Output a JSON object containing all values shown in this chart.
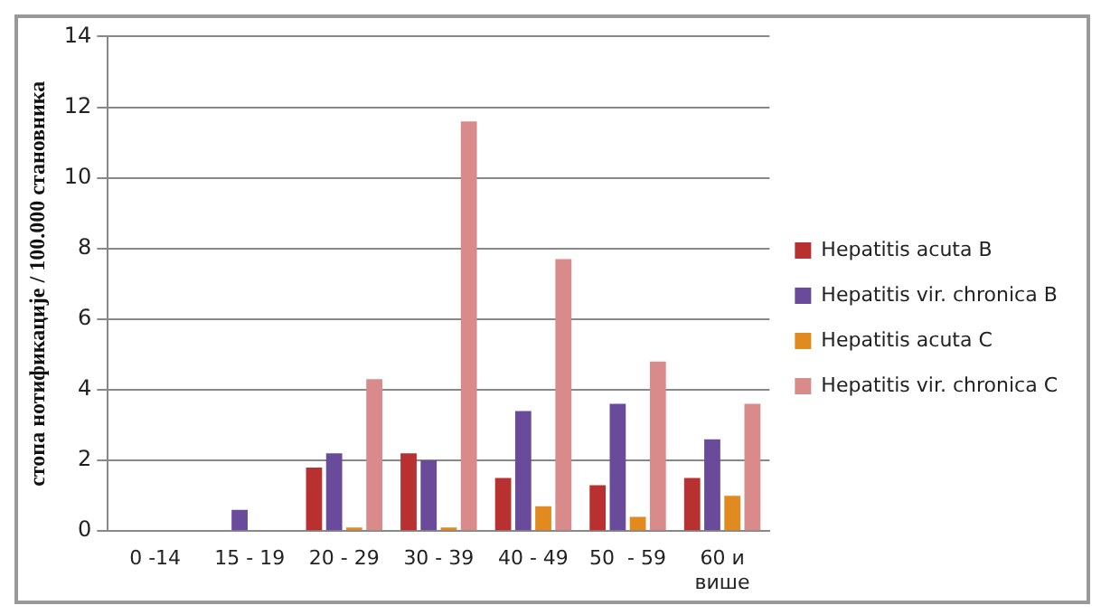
{
  "chart_data": {
    "type": "bar",
    "ylabel": "стопа нотификације / 100.000 становника",
    "categories": [
      "0 -14",
      "15 - 19",
      "20 - 29",
      "30 - 39",
      "40 - 49",
      "50  - 59",
      "60 и више"
    ],
    "series": [
      {
        "name": "Hepatitis acuta B",
        "color": "#b83030",
        "values": [
          0,
          0,
          1.8,
          2.2,
          1.5,
          1.3,
          1.5
        ]
      },
      {
        "name": "Hepatitis vir. chronica B",
        "color": "#6a4a9a",
        "values": [
          0,
          0.6,
          2.2,
          2.0,
          3.4,
          3.6,
          2.6
        ]
      },
      {
        "name": "Hepatitis acuta C",
        "color": "#e08a20",
        "values": [
          0,
          0,
          0.1,
          0.1,
          0.7,
          0.4,
          1.0
        ]
      },
      {
        "name": "Hepatitis vir. chronica C",
        "color": "#d98a8a",
        "values": [
          0,
          0,
          4.3,
          11.6,
          7.7,
          4.8,
          3.6
        ]
      }
    ],
    "ylim": [
      0,
      14
    ],
    "yticks": [
      0,
      2,
      4,
      6,
      8,
      10,
      12,
      14
    ],
    "grid": "y",
    "legend": "right"
  }
}
